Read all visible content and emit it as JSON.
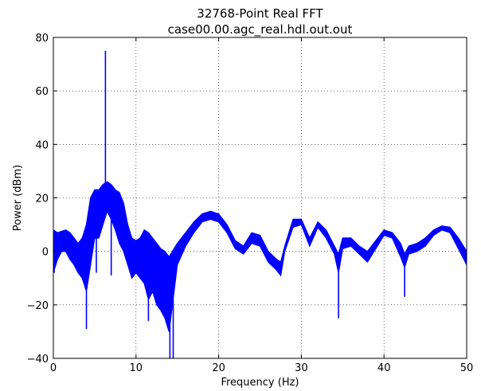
{
  "chart_data": {
    "type": "line",
    "title": "32768-Point Real FFT",
    "subtitle": "case00.00.agc_real.hdl.out.out",
    "xlabel": "Frequency (Hz)",
    "ylabel": "Power (dBm)",
    "xlim": [
      0,
      50
    ],
    "ylim": [
      -40,
      80
    ],
    "xticks": [
      "0",
      "10",
      "20",
      "30",
      "40",
      "50"
    ],
    "yticks": [
      "−40",
      "−20",
      "0",
      "20",
      "40",
      "60",
      "80"
    ],
    "grid": true,
    "line_color": "#0000ff",
    "series": [
      {
        "description": "upper envelope",
        "x": [
          0,
          0.5,
          1,
          1.5,
          2,
          2.5,
          3,
          3.5,
          4,
          4.5,
          5,
          5.5,
          6,
          6.5,
          7,
          7.5,
          8,
          8.5,
          9,
          9.5,
          10,
          10.5,
          11,
          11.5,
          12,
          12.5,
          13,
          13.5,
          14,
          15,
          16,
          17,
          18,
          19,
          20,
          21,
          22,
          23,
          24,
          25,
          26,
          27,
          27.5,
          28,
          29,
          30,
          31,
          32,
          33,
          33.5,
          34,
          34.5,
          35,
          36,
          37,
          38,
          39,
          40,
          41,
          42,
          42.5,
          43,
          44,
          45,
          46,
          47,
          48,
          49,
          50
        ],
        "y": [
          8,
          7,
          7.5,
          8,
          7,
          5,
          3,
          5,
          10,
          20,
          23,
          23,
          25,
          26,
          25,
          23,
          22,
          18,
          10,
          5,
          4,
          5,
          8,
          7,
          5,
          3,
          1,
          0,
          -2,
          3,
          7,
          11,
          14,
          15,
          14,
          10,
          4,
          2,
          7,
          6,
          0,
          -3,
          -4,
          2,
          12,
          12,
          5,
          11,
          8,
          5,
          2,
          -1,
          5,
          5,
          2,
          0,
          4,
          8,
          7,
          3,
          -1,
          2,
          3,
          5,
          8,
          9.5,
          9,
          5,
          0
        ]
      },
      {
        "description": "lower envelope",
        "x": [
          0,
          0.5,
          1,
          1.5,
          2,
          2.5,
          3,
          3.5,
          4,
          4.5,
          5,
          5.5,
          6,
          6.5,
          7,
          7.5,
          8,
          8.5,
          9,
          9.5,
          10,
          10.5,
          11,
          11.5,
          12,
          12.5,
          13,
          13.5,
          14,
          15,
          16,
          17,
          18,
          19,
          20,
          21,
          22,
          23,
          24,
          25,
          26,
          27,
          27.5,
          28,
          29,
          30,
          31,
          32,
          33,
          33.5,
          34,
          34.5,
          35,
          36,
          37,
          38,
          39,
          40,
          41,
          42,
          42.5,
          43,
          44,
          45,
          46,
          47,
          48,
          49,
          50
        ],
        "y": [
          -8,
          -3,
          0,
          0,
          -3,
          -5,
          -8,
          -10,
          -15,
          -5,
          5,
          5,
          10,
          15,
          12,
          8,
          3,
          0,
          -5,
          -10,
          -8,
          -10,
          -12,
          -18,
          -15,
          -20,
          -22,
          -25,
          -30,
          -5,
          2,
          7,
          11,
          12,
          11,
          7,
          1,
          -1,
          3,
          2,
          -4,
          -7,
          -9,
          0,
          9,
          10,
          2,
          9,
          5,
          2,
          -1,
          -8,
          1,
          2,
          -1,
          -4,
          1,
          6,
          5,
          -2,
          -6,
          -1,
          0,
          2,
          6,
          8,
          7,
          1,
          -5
        ]
      },
      {
        "description": "spikes",
        "spikes": [
          {
            "x": 6.3,
            "y": 75
          },
          {
            "x": 0.1,
            "y": -8
          },
          {
            "x": 4.0,
            "y": -29
          },
          {
            "x": 5.2,
            "y": -8
          },
          {
            "x": 7.0,
            "y": -9
          },
          {
            "x": 11.5,
            "y": -26
          },
          {
            "x": 14.1,
            "y": -40
          },
          {
            "x": 14.5,
            "y": -40
          },
          {
            "x": 34.5,
            "y": -25
          },
          {
            "x": 42.5,
            "y": -17
          }
        ]
      }
    ]
  }
}
